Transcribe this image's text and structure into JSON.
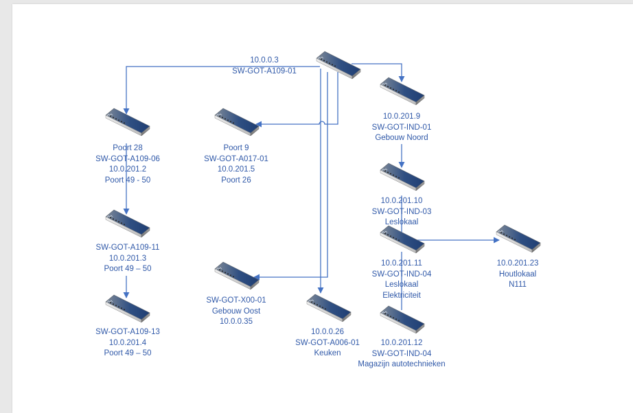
{
  "colors": {
    "line": "#4472c4",
    "label": "#2f58a8",
    "canvas": "#ffffff",
    "background": "#e8e8e8"
  },
  "switch_icon": "network-switch-icon",
  "switches": {
    "core": {
      "lines": [
        "10.0.0.3",
        "SW-GOT-A109-01"
      ]
    },
    "a10906": {
      "lines": [
        "Poort 28",
        "SW-GOT-A109-06",
        "10.0.201.2",
        "Poort 49 - 50"
      ]
    },
    "a01701": {
      "lines": [
        "Poort 9",
        "SW-GOT-A017-01",
        "10.0.201.5",
        "Poort 26"
      ]
    },
    "ind01": {
      "lines": [
        "10.0.201.9",
        "SW-GOT-IND-01",
        "Gebouw Noord"
      ]
    },
    "ind03": {
      "lines": [
        "10.0.201.10",
        "SW-GOT-IND-03",
        "Leslokaal"
      ]
    },
    "a10911": {
      "lines": [
        "SW-GOT-A109-11",
        "10.0.201.3",
        "Poort 49 – 50"
      ]
    },
    "ind04a": {
      "lines": [
        "10.0.201.11",
        "SW-GOT-IND-04",
        "Leslokaal",
        "Elektriciteit"
      ]
    },
    "hout": {
      "lines": [
        "10.0.201.23",
        "Houtlokaal",
        "N111"
      ]
    },
    "x0001": {
      "lines": [
        "SW-GOT-X00-01",
        "Gebouw Oost",
        "10.0.0.35"
      ]
    },
    "a00601": {
      "lines": [
        "10.0.0.26",
        "SW-GOT-A006-01",
        "Keuken"
      ]
    },
    "a10913": {
      "lines": [
        "SW-GOT-A109-13",
        "10.0.201.4",
        "Poort 49 – 50"
      ]
    },
    "ind04b": {
      "lines": [
        "10.0.201.12",
        "SW-GOT-IND-04",
        "Magazijn autotechnieken"
      ]
    }
  }
}
